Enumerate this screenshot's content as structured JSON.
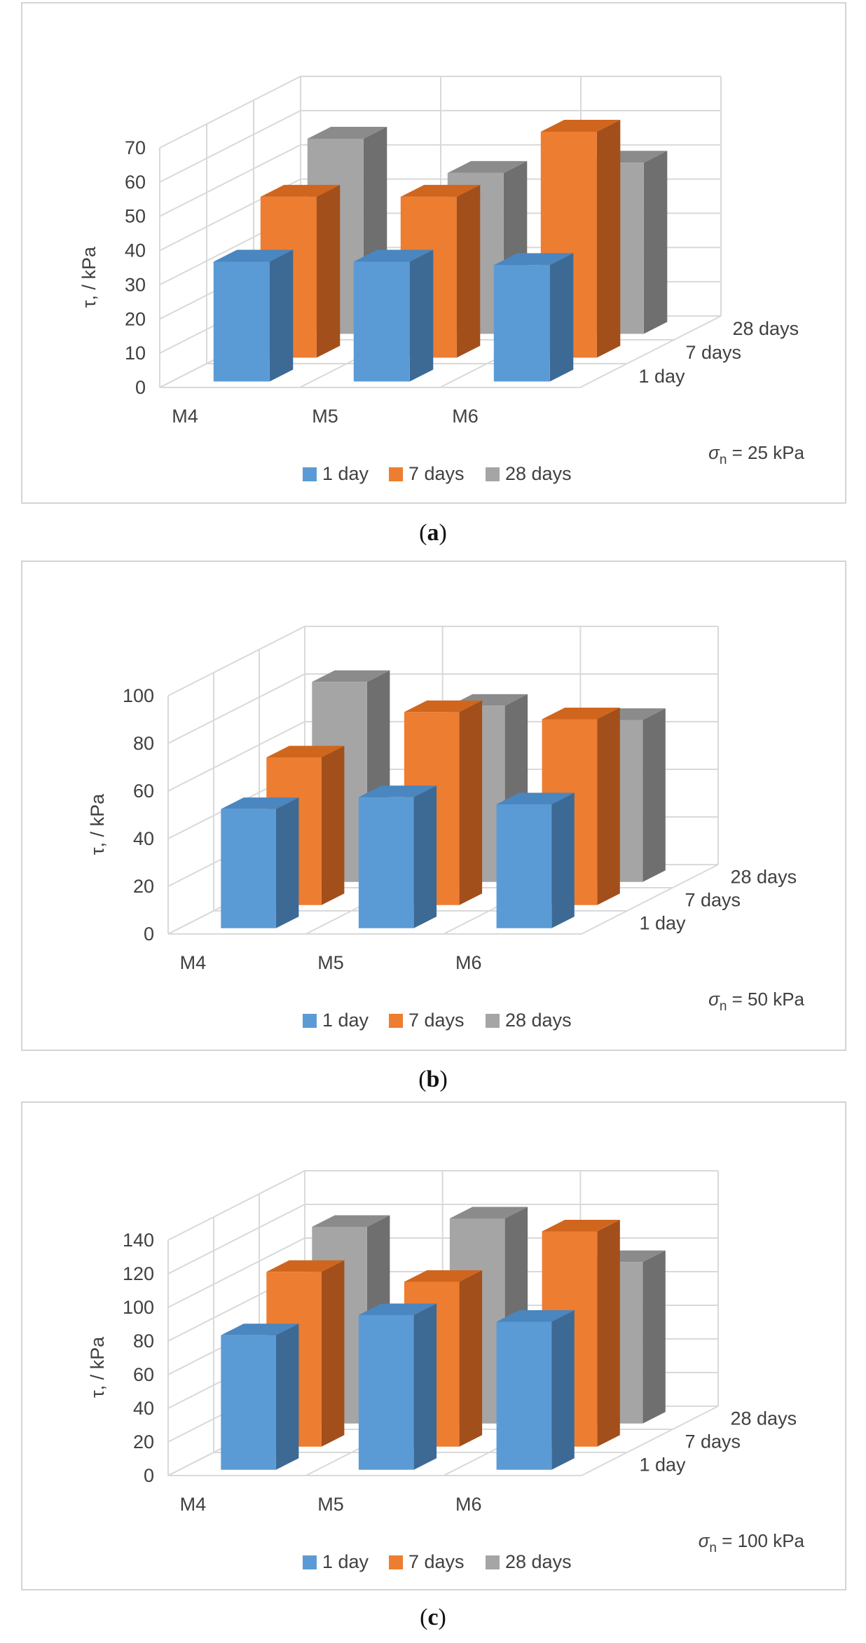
{
  "colors": {
    "1 day": {
      "front": "#5b9bd5",
      "top": "#4a86c0",
      "side": "#3c6a95"
    },
    "7 days": {
      "front": "#ed7d31",
      "top": "#d0661e",
      "side": "#a24f1b"
    },
    "28 days": {
      "front": "#a5a5a5",
      "top": "#8b8b8b",
      "side": "#6f6f6f"
    },
    "grid": "#d9d9d9"
  },
  "chart_data": [
    {
      "type": "bar",
      "caption": "a",
      "ylabel": "τ, / kPa",
      "note": "σn = 25 kPa",
      "note_main": "σ",
      "note_sub": "n",
      "note_rest": " = 25 kPa",
      "categories": [
        "M4",
        "M5",
        "M6"
      ],
      "depth_labels": [
        "1 day",
        "7 days",
        "28 days"
      ],
      "yticks": [
        0,
        10,
        20,
        30,
        40,
        50,
        60,
        70
      ],
      "ylim": [
        0,
        70
      ],
      "series": [
        {
          "name": "1 day",
          "values": [
            35,
            35,
            34
          ]
        },
        {
          "name": "7 days",
          "values": [
            47,
            47,
            66
          ]
        },
        {
          "name": "28 days",
          "values": [
            57,
            47,
            50
          ]
        }
      ],
      "legend": [
        "1 day",
        "7 days",
        "28 days"
      ]
    },
    {
      "type": "bar",
      "caption": "b",
      "ylabel": "τ, / kPa",
      "note": "σn = 50 kPa",
      "note_main": "σ",
      "note_sub": "n",
      "note_rest": " = 50 kPa",
      "categories": [
        "M4",
        "M5",
        "M6"
      ],
      "depth_labels": [
        "1 day",
        "7 days",
        "28 days"
      ],
      "yticks": [
        0,
        20,
        40,
        60,
        80,
        100
      ],
      "ylim": [
        0,
        100
      ],
      "series": [
        {
          "name": "1 day",
          "values": [
            50,
            55,
            52
          ]
        },
        {
          "name": "7 days",
          "values": [
            62,
            81,
            78
          ]
        },
        {
          "name": "28 days",
          "values": [
            84,
            74,
            68
          ]
        }
      ],
      "legend": [
        "1 day",
        "7 days",
        "28 days"
      ]
    },
    {
      "type": "bar",
      "caption": "c",
      "ylabel": "τ, / kPa",
      "note": "σn = 100 kPa",
      "note_main": "σ",
      "note_sub": "n",
      "note_rest": " = 100 kPa",
      "categories": [
        "M4",
        "M5",
        "M6"
      ],
      "depth_labels": [
        "1 day",
        "7 days",
        "28 days"
      ],
      "yticks": [
        0,
        20,
        40,
        60,
        80,
        100,
        120,
        140
      ],
      "ylim": [
        0,
        140
      ],
      "series": [
        {
          "name": "1 day",
          "values": [
            80,
            92,
            88
          ]
        },
        {
          "name": "7 days",
          "values": [
            104,
            98,
            128
          ]
        },
        {
          "name": "28 days",
          "values": [
            117,
            122,
            96
          ]
        }
      ],
      "legend": [
        "1 day",
        "7 days",
        "28 days"
      ]
    }
  ]
}
